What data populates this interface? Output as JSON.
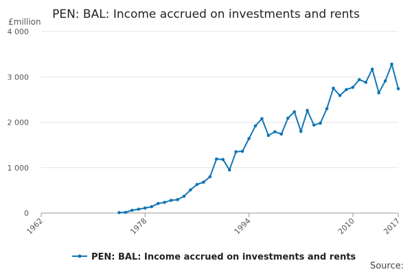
{
  "chart_data": {
    "type": "line",
    "title": "PEN: BAL: Income accrued on investments and rents",
    "y_unit": "£million",
    "source": "Source:",
    "x": [
      1974,
      1975,
      1976,
      1977,
      1978,
      1979,
      1980,
      1981,
      1982,
      1983,
      1984,
      1985,
      1986,
      1987,
      1988,
      1989,
      1990,
      1991,
      1992,
      1993,
      1994,
      1995,
      1996,
      1997,
      1998,
      1999,
      2000,
      2001,
      2002,
      2003,
      2004,
      2005,
      2006,
      2007,
      2008,
      2009,
      2010,
      2011,
      2012,
      2013,
      2014,
      2015,
      2016,
      2017
    ],
    "series": [
      {
        "name": "PEN: BAL: Income accrued on investments and rents",
        "color": "#0f75b5",
        "values": [
          10,
          15,
          60,
          85,
          110,
          140,
          210,
          235,
          280,
          295,
          370,
          510,
          630,
          680,
          800,
          1190,
          1180,
          950,
          1350,
          1360,
          1640,
          1920,
          2080,
          1710,
          1790,
          1740,
          2090,
          2230,
          1800,
          2260,
          1940,
          1980,
          2300,
          2750,
          2590,
          2720,
          2770,
          2940,
          2880,
          3170,
          2650,
          2910,
          3280,
          2740
        ]
      }
    ],
    "xlim": [
      1962,
      2017
    ],
    "xticks": [
      1962,
      1978,
      1994,
      2010,
      2017
    ],
    "ylim": [
      0,
      4000
    ],
    "yticks": [
      0,
      {
        "value": 1000,
        "label": "1 000"
      },
      {
        "value": 2000,
        "label": "2 000"
      },
      {
        "value": 3000,
        "label": "3 000"
      },
      {
        "value": 4000,
        "label": "4 000"
      }
    ],
    "grid": true
  }
}
